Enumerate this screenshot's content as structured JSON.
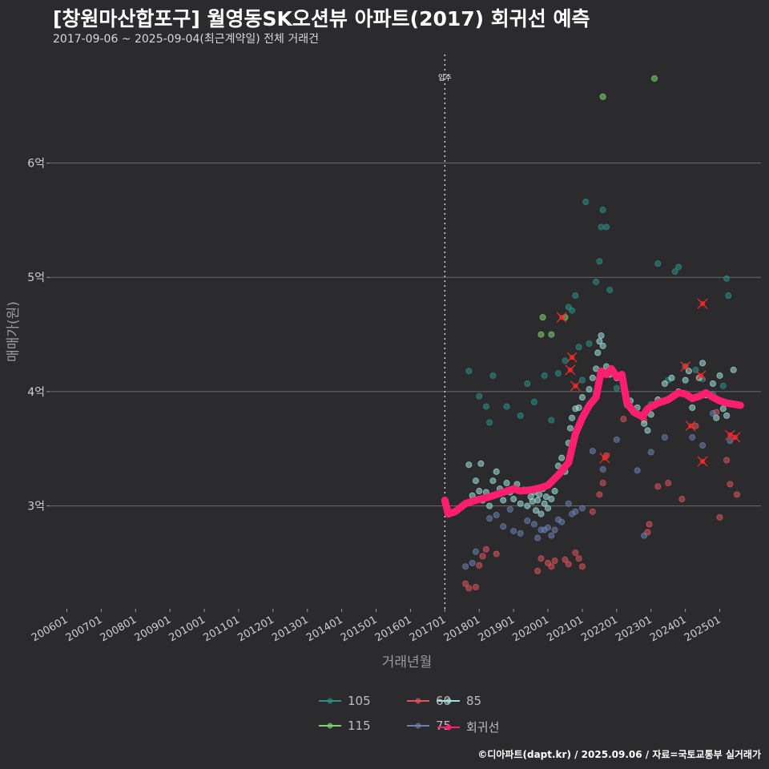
{
  "title": "[창원마산합포구] 월영동SK오션뷰 아파트(2017) 회귀선 예측",
  "subtitle": "2017-09-06 ~ 2025-09-04(최근계약일) 전체 거래건",
  "caption": "©디아파트(dapt.kr) / 2025.09.06 / 자료=국토교통부 실거래가",
  "chart_data": {
    "type": "scatter",
    "xlabel": "거래년월",
    "ylabel": "매매가(원)",
    "x_ticks": [
      "200601",
      "200701",
      "200801",
      "200901",
      "201001",
      "201101",
      "201201",
      "201301",
      "201401",
      "201501",
      "201601",
      "201701",
      "201801",
      "201901",
      "202001",
      "202101",
      "202201",
      "202301",
      "202401",
      "202501"
    ],
    "x_range": [
      2005.5,
      2026.2
    ],
    "y_range": [
      2.1,
      6.95
    ],
    "y_ticks": [
      {
        "value": 3,
        "label": "3억"
      },
      {
        "value": 4,
        "label": "4억"
      },
      {
        "value": 5,
        "label": "5억"
      },
      {
        "value": 6,
        "label": "6억"
      }
    ],
    "move_in": {
      "x": 2017.0,
      "label": "입주"
    },
    "colors": {
      "105": "#2a8f88",
      "115": "#7ed56f",
      "60": "#e0525c",
      "75": "#6b7fb0",
      "85": "#9fe0dc",
      "회귀선": "#ff1f6e",
      "flag": "#ff2a2a"
    },
    "legend": [
      "105",
      "115",
      "60",
      "75",
      "85",
      "회귀선"
    ],
    "series": [
      {
        "name": "105",
        "points": [
          [
            2017.7,
            4.18
          ],
          [
            2018.0,
            3.96
          ],
          [
            2018.2,
            3.87
          ],
          [
            2018.3,
            3.73
          ],
          [
            2018.4,
            4.14
          ],
          [
            2018.8,
            3.87
          ],
          [
            2019.2,
            3.79
          ],
          [
            2019.4,
            4.07
          ],
          [
            2019.6,
            3.91
          ],
          [
            2019.9,
            4.14
          ],
          [
            2020.1,
            3.75
          ],
          [
            2020.3,
            4.16
          ],
          [
            2020.5,
            4.27
          ],
          [
            2020.6,
            4.74
          ],
          [
            2020.7,
            4.71
          ],
          [
            2020.8,
            4.84
          ],
          [
            2020.9,
            4.39
          ],
          [
            2021.0,
            4.1
          ],
          [
            2021.1,
            5.66
          ],
          [
            2021.2,
            4.42
          ],
          [
            2021.4,
            4.96
          ],
          [
            2021.5,
            5.14
          ],
          [
            2021.55,
            5.44
          ],
          [
            2021.6,
            5.59
          ],
          [
            2021.7,
            5.44
          ],
          [
            2021.8,
            4.89
          ],
          [
            2022.0,
            4.03
          ],
          [
            2022.3,
            3.88
          ],
          [
            2023.0,
            3.89
          ],
          [
            2023.2,
            5.12
          ],
          [
            2023.5,
            4.1
          ],
          [
            2023.7,
            5.05
          ],
          [
            2023.8,
            5.09
          ],
          [
            2024.0,
            4.22
          ],
          [
            2024.3,
            4.19
          ],
          [
            2024.5,
            4.11
          ],
          [
            2024.8,
            3.98
          ],
          [
            2025.1,
            4.05
          ],
          [
            2025.2,
            4.99
          ],
          [
            2025.25,
            4.84
          ],
          [
            2025.4,
            3.89
          ]
        ]
      },
      {
        "name": "115",
        "points": [
          [
            2019.8,
            4.5
          ],
          [
            2019.85,
            4.65
          ],
          [
            2020.1,
            4.5
          ],
          [
            2020.5,
            4.65
          ],
          [
            2021.6,
            6.58
          ],
          [
            2023.1,
            6.74
          ]
        ]
      },
      {
        "name": "60",
        "points": [
          [
            2017.6,
            2.32
          ],
          [
            2017.7,
            2.28
          ],
          [
            2017.9,
            2.29
          ],
          [
            2018.0,
            2.48
          ],
          [
            2018.1,
            2.56
          ],
          [
            2018.2,
            2.62
          ],
          [
            2018.5,
            2.58
          ],
          [
            2019.7,
            2.43
          ],
          [
            2019.8,
            2.54
          ],
          [
            2020.0,
            2.5
          ],
          [
            2020.1,
            2.47
          ],
          [
            2020.2,
            2.52
          ],
          [
            2020.5,
            2.53
          ],
          [
            2020.6,
            2.49
          ],
          [
            2020.8,
            2.59
          ],
          [
            2020.9,
            2.54
          ],
          [
            2021.0,
            2.47
          ],
          [
            2021.3,
            2.95
          ],
          [
            2021.5,
            3.1
          ],
          [
            2021.6,
            3.2
          ],
          [
            2021.7,
            3.44
          ],
          [
            2022.2,
            3.76
          ],
          [
            2022.5,
            3.82
          ],
          [
            2022.8,
            3.75
          ],
          [
            2022.9,
            2.77
          ],
          [
            2022.95,
            2.84
          ],
          [
            2023.2,
            3.17
          ],
          [
            2023.5,
            3.2
          ],
          [
            2023.9,
            3.06
          ],
          [
            2024.3,
            3.7
          ],
          [
            2024.9,
            3.82
          ],
          [
            2025.0,
            2.9
          ],
          [
            2025.2,
            3.4
          ],
          [
            2025.3,
            3.19
          ],
          [
            2025.5,
            3.1
          ]
        ]
      },
      {
        "name": "75",
        "points": [
          [
            2017.6,
            2.47
          ],
          [
            2017.8,
            2.5
          ],
          [
            2017.9,
            2.6
          ],
          [
            2018.3,
            2.89
          ],
          [
            2018.5,
            2.92
          ],
          [
            2018.7,
            2.82
          ],
          [
            2018.9,
            2.97
          ],
          [
            2019.0,
            2.78
          ],
          [
            2019.2,
            2.76
          ],
          [
            2019.4,
            2.87
          ],
          [
            2019.6,
            2.84
          ],
          [
            2019.7,
            2.72
          ],
          [
            2019.8,
            2.79
          ],
          [
            2019.9,
            2.79
          ],
          [
            2020.0,
            2.81
          ],
          [
            2020.1,
            2.74
          ],
          [
            2020.2,
            2.79
          ],
          [
            2020.3,
            2.88
          ],
          [
            2020.4,
            2.86
          ],
          [
            2020.6,
            3.02
          ],
          [
            2020.7,
            2.93
          ],
          [
            2020.8,
            2.95
          ],
          [
            2021.0,
            2.98
          ],
          [
            2021.3,
            3.48
          ],
          [
            2021.6,
            3.32
          ],
          [
            2022.0,
            3.58
          ],
          [
            2022.6,
            3.31
          ],
          [
            2022.8,
            2.74
          ],
          [
            2023.0,
            3.47
          ],
          [
            2023.4,
            3.6
          ],
          [
            2024.2,
            3.6
          ],
          [
            2024.5,
            3.53
          ],
          [
            2024.8,
            3.81
          ],
          [
            2025.3,
            3.57
          ]
        ]
      },
      {
        "name": "85",
        "points": [
          [
            2017.7,
            3.36
          ],
          [
            2017.8,
            3.09
          ],
          [
            2017.9,
            3.22
          ],
          [
            2018.0,
            3.13
          ],
          [
            2018.05,
            3.37
          ],
          [
            2018.1,
            3.05
          ],
          [
            2018.2,
            3.12
          ],
          [
            2018.3,
            3.0
          ],
          [
            2018.4,
            3.22
          ],
          [
            2018.5,
            3.3
          ],
          [
            2018.6,
            3.15
          ],
          [
            2018.7,
            3.05
          ],
          [
            2018.8,
            3.2
          ],
          [
            2018.9,
            3.12
          ],
          [
            2019.0,
            3.06
          ],
          [
            2019.1,
            3.19
          ],
          [
            2019.2,
            3.02
          ],
          [
            2019.3,
            3.14
          ],
          [
            2019.4,
            3.0
          ],
          [
            2019.5,
            3.08
          ],
          [
            2019.55,
            3.04
          ],
          [
            2019.6,
            3.12
          ],
          [
            2019.65,
            2.96
          ],
          [
            2019.7,
            3.05
          ],
          [
            2019.75,
            3.1
          ],
          [
            2019.8,
            2.93
          ],
          [
            2019.85,
            3.15
          ],
          [
            2019.9,
            3.02
          ],
          [
            2019.95,
            3.08
          ],
          [
            2020.0,
            2.98
          ],
          [
            2020.05,
            3.2
          ],
          [
            2020.1,
            3.06
          ],
          [
            2020.2,
            3.13
          ],
          [
            2020.3,
            3.35
          ],
          [
            2020.4,
            3.42
          ],
          [
            2020.5,
            3.3
          ],
          [
            2020.6,
            3.55
          ],
          [
            2020.65,
            3.68
          ],
          [
            2020.7,
            3.77
          ],
          [
            2020.8,
            3.85
          ],
          [
            2020.9,
            3.86
          ],
          [
            2021.0,
            3.95
          ],
          [
            2021.1,
            3.82
          ],
          [
            2021.2,
            4.02
          ],
          [
            2021.3,
            4.12
          ],
          [
            2021.4,
            4.2
          ],
          [
            2021.45,
            4.34
          ],
          [
            2021.5,
            4.44
          ],
          [
            2021.55,
            4.49
          ],
          [
            2021.6,
            4.4
          ],
          [
            2021.7,
            4.22
          ],
          [
            2021.8,
            4.15
          ],
          [
            2022.0,
            4.12
          ],
          [
            2022.2,
            4.08
          ],
          [
            2022.4,
            3.92
          ],
          [
            2022.6,
            3.86
          ],
          [
            2022.8,
            3.72
          ],
          [
            2022.9,
            3.66
          ],
          [
            2023.0,
            3.8
          ],
          [
            2023.2,
            3.93
          ],
          [
            2023.4,
            4.07
          ],
          [
            2023.6,
            4.12
          ],
          [
            2023.8,
            4.0
          ],
          [
            2024.0,
            4.1
          ],
          [
            2024.1,
            4.18
          ],
          [
            2024.2,
            3.86
          ],
          [
            2024.4,
            4.12
          ],
          [
            2024.5,
            4.25
          ],
          [
            2024.6,
            3.97
          ],
          [
            2024.8,
            4.07
          ],
          [
            2024.9,
            3.77
          ],
          [
            2025.0,
            4.14
          ],
          [
            2025.1,
            3.85
          ],
          [
            2025.2,
            3.79
          ],
          [
            2025.4,
            4.19
          ]
        ]
      }
    ],
    "flagged": [
      [
        2020.4,
        4.65
      ],
      [
        2020.7,
        4.3
      ],
      [
        2020.65,
        4.19
      ],
      [
        2020.8,
        4.05
      ],
      [
        2021.65,
        3.42
      ],
      [
        2024.0,
        4.22
      ],
      [
        2024.45,
        4.14
      ],
      [
        2024.5,
        4.77
      ],
      [
        2024.15,
        3.7
      ],
      [
        2024.5,
        3.39
      ],
      [
        2025.3,
        3.62
      ],
      [
        2025.45,
        3.6
      ]
    ],
    "regression": [
      [
        2017.0,
        3.05
      ],
      [
        2017.1,
        2.93
      ],
      [
        2017.3,
        2.95
      ],
      [
        2017.6,
        3.02
      ],
      [
        2017.9,
        3.05
      ],
      [
        2018.3,
        3.08
      ],
      [
        2018.7,
        3.12
      ],
      [
        2019.0,
        3.15
      ],
      [
        2019.2,
        3.13
      ],
      [
        2019.5,
        3.14
      ],
      [
        2019.8,
        3.16
      ],
      [
        2020.0,
        3.18
      ],
      [
        2020.3,
        3.27
      ],
      [
        2020.6,
        3.38
      ],
      [
        2020.8,
        3.63
      ],
      [
        2021.0,
        3.77
      ],
      [
        2021.2,
        3.88
      ],
      [
        2021.4,
        3.95
      ],
      [
        2021.55,
        4.18
      ],
      [
        2021.7,
        4.15
      ],
      [
        2021.85,
        4.2
      ],
      [
        2022.0,
        4.13
      ],
      [
        2022.15,
        4.15
      ],
      [
        2022.3,
        3.9
      ],
      [
        2022.5,
        3.82
      ],
      [
        2022.75,
        3.78
      ],
      [
        2022.9,
        3.85
      ],
      [
        2023.2,
        3.9
      ],
      [
        2023.5,
        3.93
      ],
      [
        2023.8,
        3.99
      ],
      [
        2024.0,
        3.98
      ],
      [
        2024.2,
        3.94
      ],
      [
        2024.4,
        3.96
      ],
      [
        2024.6,
        3.99
      ],
      [
        2024.8,
        3.95
      ],
      [
        2025.0,
        3.92
      ],
      [
        2025.2,
        3.9
      ],
      [
        2025.4,
        3.89
      ],
      [
        2025.6,
        3.88
      ]
    ]
  }
}
